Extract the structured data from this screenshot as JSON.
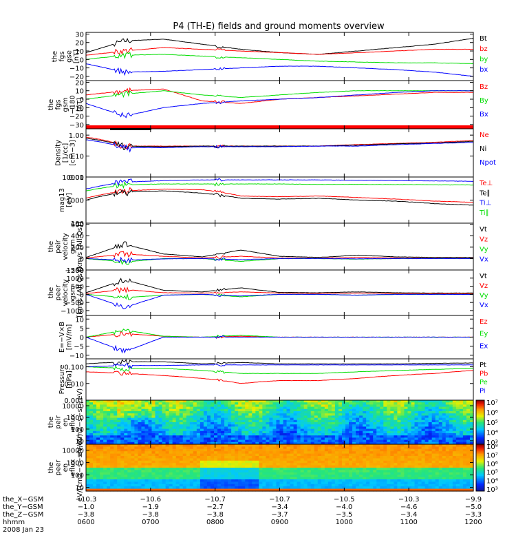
{
  "title": "P4 (TH-E) fields and ground moments overview",
  "colors": {
    "black": "#000000",
    "red": "#ff0000",
    "green": "#00dd00",
    "blue": "#0000ff"
  },
  "chart_data": [
    {
      "type": "line",
      "id": "fgs_gse",
      "ylabel": [
        "the",
        "fgs",
        "gse",
        "[nT]"
      ],
      "ylim": [
        -25,
        32
      ],
      "yticks": [
        30,
        20,
        10,
        0,
        -10,
        -20
      ],
      "ytick_labels": [
        "30",
        "20",
        "10",
        "0",
        "−10",
        "−20"
      ],
      "series": [
        {
          "name": "Bt",
          "color": "black",
          "values": [
            8,
            22,
            24,
            18,
            12,
            8,
            6,
            10,
            14,
            18,
            25
          ]
        },
        {
          "name": "bz",
          "color": "red",
          "values": [
            5,
            10,
            14,
            12,
            10,
            8,
            6,
            8,
            10,
            12,
            12
          ]
        },
        {
          "name": "by",
          "color": "green",
          "values": [
            0,
            5,
            6,
            4,
            2,
            0,
            -2,
            -3,
            -4,
            -4,
            -5
          ]
        },
        {
          "name": "bx",
          "color": "blue",
          "values": [
            -5,
            -15,
            -14,
            -12,
            -10,
            -8,
            -8,
            -10,
            -12,
            -15,
            -20
          ]
        }
      ]
    },
    {
      "type": "line",
      "id": "fgs_gsm",
      "ylabel": [
        "the",
        "fgs",
        "gsm",
        "−180",
        "[nT]"
      ],
      "ylim": [
        -35,
        22
      ],
      "yticks": [
        20,
        10,
        0,
        -10,
        -20,
        -30
      ],
      "ytick_labels": [
        "20",
        "10",
        "0",
        "−10",
        "−20",
        "−30"
      ],
      "series": [
        {
          "name": "Bz",
          "color": "red",
          "values": [
            5,
            10,
            12,
            -2,
            -5,
            0,
            2,
            4,
            6,
            8,
            8
          ]
        },
        {
          "name": "By",
          "color": "green",
          "values": [
            0,
            6,
            10,
            5,
            2,
            5,
            8,
            10,
            10,
            10,
            10
          ]
        },
        {
          "name": "Bx",
          "color": "blue",
          "values": [
            -5,
            -20,
            -10,
            -5,
            -2,
            0,
            2,
            5,
            8,
            10,
            10
          ]
        }
      ]
    },
    {
      "type": "line",
      "id": "density",
      "ylabel": [
        "Density",
        "[1/cc]",
        "[cm−3]"
      ],
      "ylim": [
        0.01,
        2
      ],
      "log": true,
      "yticks": [
        1,
        0.1,
        0.01
      ],
      "ytick_labels": [
        "1.00",
        "0.10",
        "0.01"
      ],
      "series": [
        {
          "name": "Ne",
          "color": "red",
          "values": [
            0.8,
            0.3,
            0.3,
            0.3,
            0.3,
            0.3,
            0.3,
            0.35,
            0.4,
            0.45,
            0.55
          ]
        },
        {
          "name": "Ni",
          "color": "black",
          "values": [
            0.7,
            0.3,
            0.28,
            0.3,
            0.3,
            0.3,
            0.3,
            0.33,
            0.38,
            0.42,
            0.5
          ]
        },
        {
          "name": "Npot",
          "color": "blue",
          "values": [
            0.6,
            0.25,
            0.25,
            0.28,
            0.28,
            0.28,
            0.3,
            0.3,
            0.35,
            0.4,
            0.45
          ]
        }
      ]
    },
    {
      "type": "line",
      "id": "mag",
      "ylabel": [
        "mag13",
        "[eV]"
      ],
      "ylim": [
        100,
        10000
      ],
      "log": true,
      "yticks": [
        10000,
        1000,
        100
      ],
      "ytick_labels": [
        "10000",
        "1000",
        "100"
      ],
      "series": [
        {
          "name": "Te⊥",
          "color": "red",
          "values": [
            1200,
            2500,
            3000,
            2800,
            1500,
            1400,
            1500,
            1300,
            1100,
            900,
            800
          ]
        },
        {
          "name": "Te∥",
          "color": "black",
          "values": [
            1000,
            2200,
            2500,
            2000,
            1200,
            1100,
            1200,
            1000,
            900,
            700,
            600
          ]
        },
        {
          "name": "Ti⊥",
          "color": "blue",
          "values": [
            3000,
            6000,
            7000,
            7500,
            7500,
            7500,
            7500,
            7200,
            7000,
            6800,
            6500
          ]
        },
        {
          "name": "Ti∥",
          "color": "green",
          "values": [
            2500,
            4500,
            5000,
            5000,
            5000,
            5000,
            4800,
            4800,
            4700,
            4600,
            4500
          ]
        }
      ]
    },
    {
      "type": "line",
      "id": "peir_vel",
      "ylabel": [
        "the",
        "peir",
        "velocity",
        "gsm",
        "[km/s (All Qs)]"
      ],
      "ylim": [
        -200,
        620
      ],
      "yticks": [
        600,
        400,
        200,
        0,
        -200
      ],
      "ytick_labels": [
        "600",
        "400",
        "200",
        "0",
        "−200"
      ],
      "series": [
        {
          "name": "Vt",
          "color": "black",
          "values": [
            20,
            250,
            80,
            30,
            150,
            40,
            20,
            60,
            30,
            20,
            20
          ]
        },
        {
          "name": "Vz",
          "color": "red",
          "values": [
            10,
            80,
            40,
            10,
            40,
            10,
            5,
            20,
            10,
            5,
            5
          ]
        },
        {
          "name": "Vy",
          "color": "green",
          "values": [
            0,
            -60,
            0,
            0,
            -50,
            0,
            0,
            -10,
            0,
            0,
            0
          ]
        },
        {
          "name": "Vx",
          "color": "blue",
          "values": [
            0,
            -30,
            -5,
            0,
            -20,
            0,
            0,
            -5,
            0,
            0,
            0
          ]
        }
      ]
    },
    {
      "type": "line",
      "id": "peer_vel",
      "ylabel": [
        "the",
        "peer",
        "velocity",
        "gsm",
        "[km/s (All Qs)]"
      ],
      "ylim": [
        -1300,
        1500
      ],
      "yticks": [
        1500,
        1000,
        500,
        0,
        -500,
        -1000
      ],
      "ytick_labels": [
        "1500",
        "1000",
        "500",
        "0",
        "−500",
        "−1000"
      ],
      "series": [
        {
          "name": "Vt",
          "color": "black",
          "values": [
            100,
            900,
            250,
            150,
            400,
            120,
            100,
            150,
            100,
            80,
            80
          ]
        },
        {
          "name": "Vz",
          "color": "red",
          "values": [
            50,
            300,
            100,
            80,
            150,
            80,
            60,
            80,
            50,
            40,
            40
          ]
        },
        {
          "name": "Vy",
          "color": "green",
          "values": [
            0,
            -200,
            -50,
            0,
            -150,
            0,
            0,
            -50,
            0,
            0,
            0
          ]
        },
        {
          "name": "Vx",
          "color": "blue",
          "values": [
            0,
            -800,
            -50,
            0,
            -100,
            0,
            0,
            -50,
            0,
            0,
            0
          ]
        }
      ]
    },
    {
      "type": "line",
      "id": "efield",
      "ylabel": [
        "E=−V×B",
        "[mV/m]"
      ],
      "ylim": [
        -12,
        12
      ],
      "yticks": [
        10,
        5,
        0,
        -5,
        -10
      ],
      "ytick_labels": [
        "10",
        "5",
        "0",
        "−5",
        "−10"
      ],
      "series": [
        {
          "name": "Ez",
          "color": "red",
          "values": [
            0,
            2,
            0.5,
            0,
            0.5,
            0,
            0,
            0,
            0,
            0,
            0
          ]
        },
        {
          "name": "Ey",
          "color": "green",
          "values": [
            0,
            4,
            0.5,
            0,
            1,
            0,
            0,
            0,
            0,
            0,
            0
          ]
        },
        {
          "name": "Ex",
          "color": "blue",
          "values": [
            0,
            -8,
            0,
            0,
            0,
            0,
            0,
            0,
            0,
            0,
            0
          ]
        }
      ]
    },
    {
      "type": "line",
      "id": "pressure",
      "ylabel": [
        "Pressure",
        "[nPa]"
      ],
      "ylim": [
        0.001,
        0.3
      ],
      "log": true,
      "yticks": [
        0.1,
        0.01,
        0.001
      ],
      "ytick_labels": [
        "0.100",
        "0.010",
        "0.001"
      ],
      "series": [
        {
          "name": "Pt",
          "color": "black",
          "values": [
            0.15,
            0.2,
            0.2,
            0.15,
            0.18,
            0.15,
            0.15,
            0.15,
            0.15,
            0.16,
            0.17
          ]
        },
        {
          "name": "Pb",
          "color": "red",
          "values": [
            0.05,
            0.04,
            0.03,
            0.02,
            0.01,
            0.015,
            0.015,
            0.02,
            0.03,
            0.04,
            0.06
          ]
        },
        {
          "name": "Pe",
          "color": "green",
          "values": [
            0.1,
            0.08,
            0.08,
            0.06,
            0.04,
            0.04,
            0.04,
            0.05,
            0.06,
            0.07,
            0.08
          ]
        },
        {
          "name": "Pi",
          "color": "blue",
          "values": [
            0.1,
            0.12,
            0.12,
            0.13,
            0.13,
            0.13,
            0.13,
            0.13,
            0.13,
            0.13,
            0.13
          ]
        }
      ]
    },
    {
      "type": "heatmap",
      "id": "peir_eflux",
      "ylabel": [
        "the",
        "peir",
        "en",
        "eflux",
        "eV/(cm2−s−sr−eV)"
      ],
      "ylim": [
        5,
        30000
      ],
      "log": true,
      "yticks": [
        10000,
        1000,
        100,
        10
      ],
      "ytick_labels": [
        "10000",
        "1000",
        "100",
        "10"
      ],
      "colorbar": {
        "min_exp": 3,
        "max_exp": 7,
        "labels": [
          "10⁷",
          "10⁶",
          "10⁵",
          "10⁴",
          "10³"
        ]
      }
    },
    {
      "type": "heatmap",
      "id": "peer_eflux",
      "ylabel": [
        "the",
        "peer",
        "en",
        "eflux",
        "eV/(cm2−s−sr−eV)"
      ],
      "ylim": [
        5,
        30000
      ],
      "log": true,
      "yticks": [
        10000,
        1000,
        100,
        10
      ],
      "ytick_labels": [
        "10000",
        "1000",
        "100",
        "10"
      ],
      "colorbar": {
        "min_exp": 3,
        "max_exp": 8,
        "labels": [
          "10⁸",
          "10⁷",
          "10⁶",
          "10⁵",
          "10⁴",
          "10³"
        ]
      }
    }
  ],
  "x_axis": {
    "hhmm": [
      "0600",
      "0700",
      "0800",
      "0900",
      "1000",
      "1100",
      "1200"
    ],
    "x_gsm": [
      "−10.3",
      "−10.6",
      "−10.7",
      "−10.7",
      "−10.5",
      "−10.3",
      "−9.9"
    ],
    "y_gsm": [
      "−1.0",
      "−1.9",
      "−2.7",
      "−3.4",
      "−4.0",
      "−4.6",
      "−5.0"
    ],
    "z_gsm": [
      "−3.8",
      "−3.8",
      "−3.8",
      "−3.7",
      "−3.5",
      "−3.4",
      "−3.3"
    ]
  },
  "row_labels": {
    "x": "the_X−GSM",
    "y": "the_Y−GSM",
    "z": "the_Z−GSM",
    "hhmm": "hhmm",
    "date": "2008 Jan 23"
  }
}
